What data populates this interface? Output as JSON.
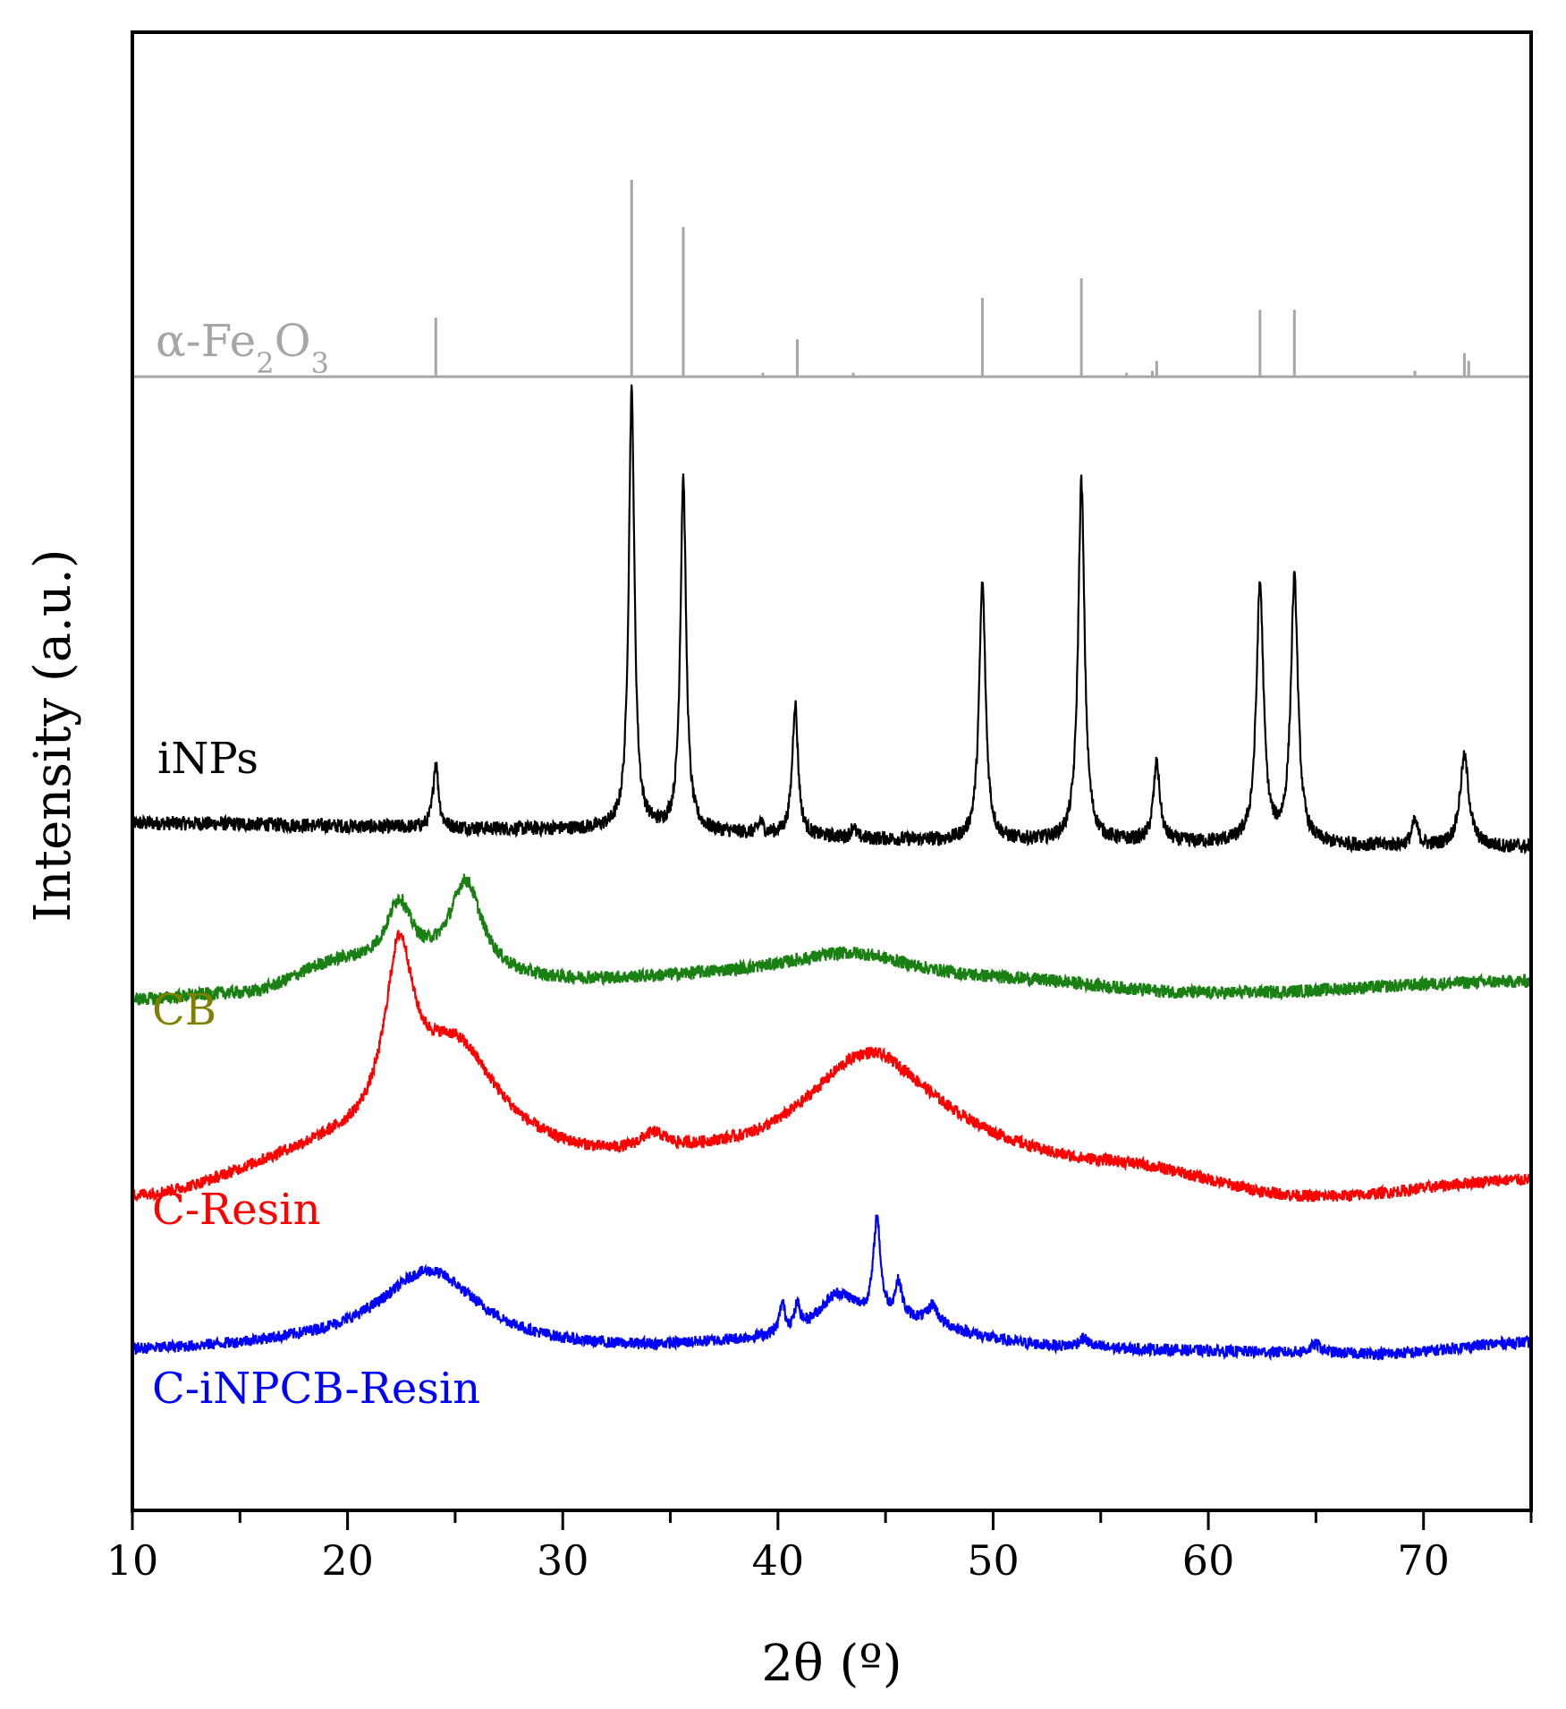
{
  "chart_data": {
    "type": "line",
    "title": "",
    "xlabel": "2θ (º)",
    "ylabel": "Intensity (a.u.)",
    "xlim": [
      10,
      75
    ],
    "x_ticks": [
      10,
      20,
      30,
      40,
      50,
      60,
      70
    ],
    "x_minor_step": 5,
    "y_ticks": [],
    "grid": false,
    "legend": "none (series labelled directly on the plot)",
    "reference": {
      "label_prefix": "α-Fe",
      "label_sub1": "2",
      "label_mid": "O",
      "label_sub2": "3",
      "color": "#a6a6a6",
      "type": "stick pattern",
      "peaks": [
        {
          "x": 24.1,
          "rel_intensity": 30
        },
        {
          "x": 33.2,
          "rel_intensity": 100
        },
        {
          "x": 35.6,
          "rel_intensity": 76
        },
        {
          "x": 39.3,
          "rel_intensity": 2
        },
        {
          "x": 40.9,
          "rel_intensity": 19
        },
        {
          "x": 43.5,
          "rel_intensity": 2
        },
        {
          "x": 49.5,
          "rel_intensity": 40
        },
        {
          "x": 54.1,
          "rel_intensity": 50
        },
        {
          "x": 56.2,
          "rel_intensity": 2
        },
        {
          "x": 57.4,
          "rel_intensity": 3
        },
        {
          "x": 57.6,
          "rel_intensity": 8
        },
        {
          "x": 62.4,
          "rel_intensity": 34
        },
        {
          "x": 64.0,
          "rel_intensity": 34
        },
        {
          "x": 69.6,
          "rel_intensity": 3
        },
        {
          "x": 71.9,
          "rel_intensity": 12
        },
        {
          "x": 72.1,
          "rel_intensity": 8
        }
      ]
    },
    "series": [
      {
        "name": "iNPs",
        "color": "#000000",
        "noise": 1.2,
        "baseline": [
          [
            10,
            100
          ],
          [
            30,
            99
          ],
          [
            50,
            97
          ],
          [
            75,
            96
          ]
        ],
        "features": [
          {
            "x": 24.1,
            "height": 11,
            "width": 0.15
          },
          {
            "x": 33.2,
            "height": 73,
            "width": 0.16
          },
          {
            "x": 35.6,
            "height": 59,
            "width": 0.16
          },
          {
            "x": 39.2,
            "height": 2,
            "width": 0.12
          },
          {
            "x": 40.8,
            "height": 22,
            "width": 0.16
          },
          {
            "x": 43.5,
            "height": 2,
            "width": 0.12
          },
          {
            "x": 49.5,
            "height": 43,
            "width": 0.18
          },
          {
            "x": 54.1,
            "height": 60,
            "width": 0.18
          },
          {
            "x": 57.6,
            "height": 13,
            "width": 0.18
          },
          {
            "x": 62.4,
            "height": 43,
            "width": 0.2
          },
          {
            "x": 64.0,
            "height": 44,
            "width": 0.2
          },
          {
            "x": 69.6,
            "height": 4,
            "width": 0.18
          },
          {
            "x": 71.9,
            "height": 15,
            "width": 0.25
          }
        ]
      },
      {
        "name": "CB",
        "color": "#1a8014",
        "label_color": "#808000",
        "noise": 1.1,
        "baseline": [
          [
            10,
            70
          ],
          [
            15,
            71
          ],
          [
            20,
            76
          ],
          [
            30,
            73
          ],
          [
            40,
            74
          ],
          [
            50,
            73
          ],
          [
            60,
            71
          ],
          [
            75,
            73
          ]
        ],
        "features": [
          {
            "x": 22.4,
            "height": 10,
            "width": 0.7
          },
          {
            "x": 25.5,
            "height": 15,
            "width": 0.9
          },
          {
            "x": 43.5,
            "height": 4,
            "width": 3.5
          }
        ]
      },
      {
        "name": "C-Resin",
        "color": "#ff0000",
        "noise": 1.0,
        "baseline": [
          [
            10,
            37
          ],
          [
            20,
            44
          ],
          [
            33,
            42
          ],
          [
            38,
            43
          ],
          [
            45,
            46
          ],
          [
            55,
            42
          ],
          [
            65,
            37
          ],
          [
            75,
            40
          ]
        ],
        "features": [
          {
            "x": 22.4,
            "height": 28,
            "width": 0.8
          },
          {
            "x": 25.0,
            "height": 18,
            "width": 2.5
          },
          {
            "x": 34.2,
            "height": 3,
            "width": 0.8
          },
          {
            "x": 44.2,
            "height": 15,
            "width": 3.5
          }
        ]
      },
      {
        "name": "C-iNPCB-Resin",
        "color": "#0000ff",
        "noise": 1.0,
        "baseline": [
          [
            10,
            3
          ],
          [
            20,
            4
          ],
          [
            32,
            3
          ],
          [
            40,
            4
          ],
          [
            55,
            3
          ],
          [
            68,
            2.5
          ],
          [
            75,
            4.5
          ]
        ],
        "features": [
          {
            "x": 23.8,
            "height": 13,
            "width": 2.8
          },
          {
            "x": 40.2,
            "height": 5,
            "width": 0.15
          },
          {
            "x": 40.9,
            "height": 4,
            "width": 0.15
          },
          {
            "x": 42.8,
            "height": 7,
            "width": 1.2
          },
          {
            "x": 44.6,
            "height": 17,
            "width": 0.2
          },
          {
            "x": 45.6,
            "height": 6,
            "width": 0.2
          },
          {
            "x": 47.2,
            "height": 3,
            "width": 0.25
          },
          {
            "x": 46.5,
            "height": 4,
            "width": 3.0
          },
          {
            "x": 54.2,
            "height": 1.5,
            "width": 0.3
          },
          {
            "x": 65.0,
            "height": 1.5,
            "width": 0.3
          }
        ]
      }
    ]
  }
}
